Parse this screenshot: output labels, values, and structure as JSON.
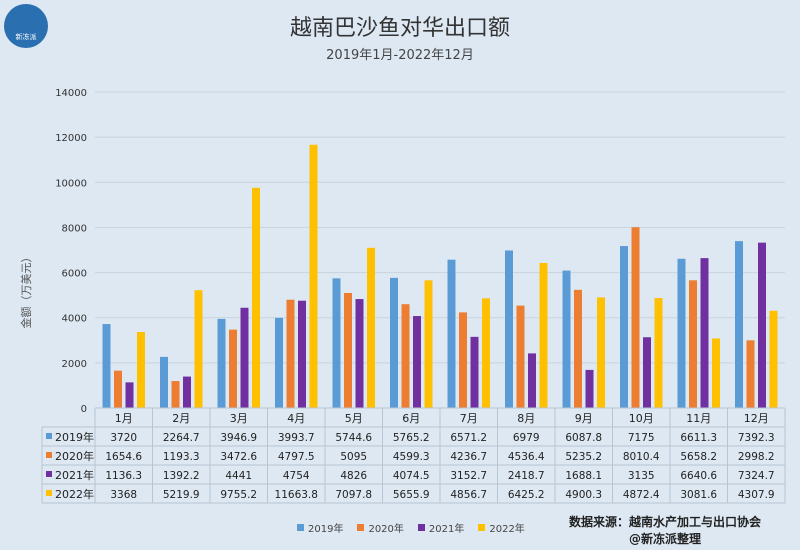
{
  "logo": {
    "text": "新冻派",
    "icon": "fish-bear-logo-icon"
  },
  "chart_data": {
    "type": "bar",
    "title": "越南巴沙鱼对华出口额",
    "subtitle": "2019年1月-2022年12月",
    "ylabel": "金额（万美元）",
    "ylim": [
      0,
      14000
    ],
    "yticks": [
      "0",
      "2000",
      "4000",
      "6000",
      "8000",
      "10000",
      "12000",
      "14000"
    ],
    "grid": true,
    "legend_position": "bottom",
    "categories": [
      "1月",
      "2月",
      "3月",
      "4月",
      "5月",
      "6月",
      "7月",
      "8月",
      "9月",
      "10月",
      "11月",
      "12月"
    ],
    "series": [
      {
        "name": "2019年",
        "color": "#5b9bd5",
        "values": [
          3720,
          2264.7,
          3946.9,
          3993.7,
          5744.6,
          5765.2,
          6571.2,
          6979,
          6087.8,
          7175,
          6611.3,
          7392.3
        ]
      },
      {
        "name": "2020年",
        "color": "#ed7d31",
        "values": [
          1654.6,
          1193.3,
          3472.6,
          4797.5,
          5095,
          4599.3,
          4236.7,
          4536.4,
          5235.2,
          8010.4,
          5658.2,
          2998.2
        ]
      },
      {
        "name": "2021年",
        "color": "#7030a0",
        "values": [
          1136.3,
          1392.2,
          4441,
          4754,
          4826,
          4074.5,
          3152.7,
          2418.7,
          1688.1,
          3135,
          6640.6,
          7324.7
        ]
      },
      {
        "name": "2022年",
        "color": "#ffc000",
        "values": [
          3368,
          5219.9,
          9755.2,
          11663.8,
          7097.8,
          5655.9,
          4856.7,
          6425.2,
          4900.3,
          4872.4,
          3081.6,
          4307.9
        ]
      }
    ]
  },
  "table": {
    "rows": [
      {
        "label": "2019年",
        "cells": [
          "3720",
          "2264.7",
          "3946.9",
          "3993.7",
          "5744.6",
          "5765.2",
          "6571.2",
          "6979",
          "6087.8",
          "7175",
          "6611.3",
          "7392.3"
        ]
      },
      {
        "label": "2020年",
        "cells": [
          "1654.6",
          "1193.3",
          "3472.6",
          "4797.5",
          "5095",
          "4599.3",
          "4236.7",
          "4536.4",
          "5235.2",
          "8010.4",
          "5658.2",
          "2998.2"
        ]
      },
      {
        "label": "2021年",
        "cells": [
          "1136.3",
          "1392.2",
          "4441",
          "4754",
          "4826",
          "4074.5",
          "3152.7",
          "2418.7",
          "1688.1",
          "3135",
          "6640.6",
          "7324.7"
        ]
      },
      {
        "label": "2022年",
        "cells": [
          "3368",
          "5219.9",
          "9755.2",
          "11663.8",
          "7097.8",
          "5655.9",
          "4856.7",
          "6425.2",
          "4900.3",
          "4872.4",
          "3081.6",
          "4307.9"
        ]
      }
    ]
  },
  "source": {
    "line1": "数据来源：越南水产加工与出口协会",
    "line2": "@新冻派整理"
  }
}
